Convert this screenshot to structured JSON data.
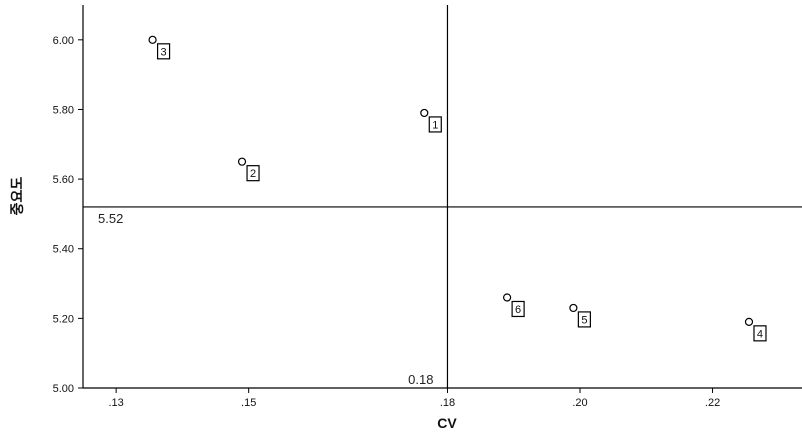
{
  "chart_data": {
    "type": "scatter",
    "xlabel": "CV",
    "ylabel": "중요도",
    "xlim": [
      0.125,
      0.2335
    ],
    "ylim": [
      5.0,
      6.1
    ],
    "xticks": [
      {
        "value": 0.13,
        "label": ".13"
      },
      {
        "value": 0.15,
        "label": ".15"
      },
      {
        "value": 0.18,
        "label": ".18"
      },
      {
        "value": 0.2,
        "label": ".20"
      },
      {
        "value": 0.22,
        "label": ".22"
      }
    ],
    "yticks": [
      {
        "value": 5.0,
        "label": "5.00"
      },
      {
        "value": 5.2,
        "label": "5.20"
      },
      {
        "value": 5.4,
        "label": "5.40"
      },
      {
        "value": 5.6,
        "label": "5.60"
      },
      {
        "value": 5.8,
        "label": "5.80"
      },
      {
        "value": 6.0,
        "label": "6.00"
      }
    ],
    "points": [
      {
        "label": "1",
        "x": 0.1765,
        "y": 5.79
      },
      {
        "label": "2",
        "x": 0.149,
        "y": 5.65
      },
      {
        "label": "3",
        "x": 0.1355,
        "y": 6.0
      },
      {
        "label": "4",
        "x": 0.2255,
        "y": 5.19
      },
      {
        "label": "5",
        "x": 0.199,
        "y": 5.23
      },
      {
        "label": "6",
        "x": 0.189,
        "y": 5.26
      }
    ],
    "reference_lines": {
      "horizontal": {
        "value": 5.52,
        "label": "5.52"
      },
      "vertical": {
        "value": 0.18,
        "label": "0.18"
      }
    },
    "grid": false,
    "legend": "none"
  }
}
